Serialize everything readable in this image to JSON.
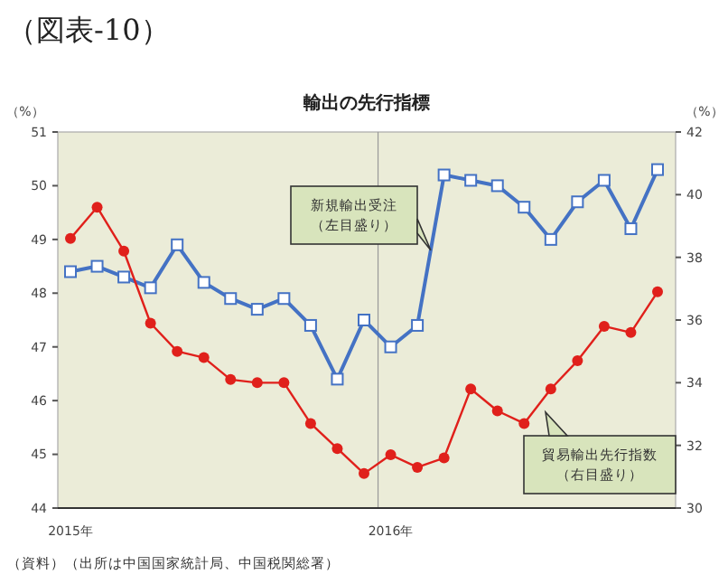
{
  "chart_data": {
    "type": "line",
    "title": "輸出の先行指標",
    "ylabel": "（%）",
    "y2label": "（%）",
    "annotations": [
      "（図表-10）",
      "（資料）（出所は中国国家統計局、中国税関総署）"
    ],
    "categories": [
      "2015年",
      null,
      null,
      null,
      null,
      null,
      null,
      null,
      null,
      null,
      null,
      null,
      "2016年",
      null,
      null,
      null,
      null,
      null,
      null,
      null,
      null,
      null,
      null
    ],
    "series": [
      {
        "name": "新規輸出受注（左目盛り）",
        "color": "#4472c4",
        "marker": "square",
        "values": [
          48.4,
          48.5,
          48.3,
          48.1,
          48.9,
          48.2,
          47.9,
          47.7,
          47.9,
          47.4,
          46.4,
          47.5,
          47.0,
          47.4,
          50.2,
          50.1,
          50.0,
          49.6,
          49.0,
          49.7,
          50.1,
          49.2,
          50.3
        ]
      },
      {
        "name": "貿易輸出先行指数（右目盛り）",
        "color": "#e0201b",
        "marker": "circle",
        "axis": "y2",
        "values": [
          38.6,
          39.6,
          38.2,
          35.9,
          35.0,
          34.8,
          34.1,
          34.0,
          34.0,
          32.7,
          31.9,
          31.1,
          31.7,
          31.3,
          31.6,
          33.8,
          33.1,
          32.7,
          33.8,
          34.7,
          35.8,
          35.6,
          36.9
        ]
      }
    ],
    "ylim": [
      44,
      51
    ],
    "yticks": [
      44,
      45,
      46,
      47,
      48,
      49,
      50,
      51
    ],
    "y2lim": [
      30,
      42
    ],
    "y2ticks": [
      30,
      32,
      34,
      36,
      38,
      40,
      42
    ],
    "grid": "x"
  }
}
